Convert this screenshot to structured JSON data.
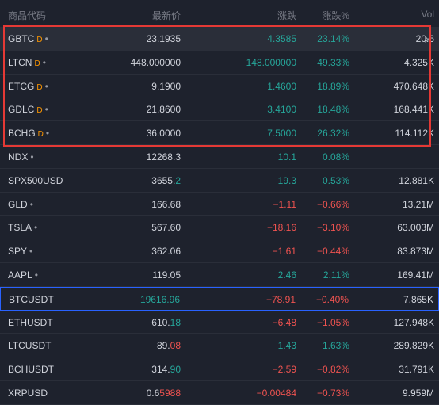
{
  "header": {
    "symbol": "商品代码",
    "last": "最新价",
    "change": "涨跌",
    "change_pct": "涨跌%",
    "volume": "Vol"
  },
  "rows": [
    {
      "symbol": "GBTC",
      "badge": "D",
      "dot": "•",
      "last_main": "23.1935",
      "last_tail": "",
      "change": "4.3585",
      "change_pct": "23.14%",
      "volume": "20.6",
      "dir": "up"
    },
    {
      "symbol": "LTCN",
      "badge": "D",
      "dot": "•",
      "last_main": "448.000000",
      "last_tail": "",
      "change": "148.000000",
      "change_pct": "49.33%",
      "volume": "4.325K",
      "dir": "up"
    },
    {
      "symbol": "ETCG",
      "badge": "D",
      "dot": "•",
      "last_main": "9.1900",
      "last_tail": "",
      "change": "1.4600",
      "change_pct": "18.89%",
      "volume": "470.648K",
      "dir": "up"
    },
    {
      "symbol": "GDLC",
      "badge": "D",
      "dot": "•",
      "last_main": "21.8600",
      "last_tail": "",
      "change": "3.4100",
      "change_pct": "18.48%",
      "volume": "168.441K",
      "dir": "up"
    },
    {
      "symbol": "BCHG",
      "badge": "D",
      "dot": "•",
      "last_main": "36.0000",
      "last_tail": "",
      "change": "7.5000",
      "change_pct": "26.32%",
      "volume": "114.112K",
      "dir": "up"
    },
    {
      "symbol": "NDX",
      "badge": "",
      "dot": "•",
      "last_main": "12268.3",
      "last_tail": "",
      "change": "10.1",
      "change_pct": "0.08%",
      "volume": "",
      "dir": "up"
    },
    {
      "symbol": "SPX500USD",
      "badge": "",
      "dot": "",
      "last_main": "3655.",
      "last_tail": "2",
      "change": "19.3",
      "change_pct": "0.53%",
      "volume": "12.881K",
      "dir": "up"
    },
    {
      "symbol": "GLD",
      "badge": "",
      "dot": "•",
      "last_main": "166.68",
      "last_tail": "",
      "change": "−1.11",
      "change_pct": "−0.66%",
      "volume": "13.21M",
      "dir": "dn"
    },
    {
      "symbol": "TSLA",
      "badge": "",
      "dot": "•",
      "last_main": "567.60",
      "last_tail": "",
      "change": "−18.16",
      "change_pct": "−3.10%",
      "volume": "63.003M",
      "dir": "dn"
    },
    {
      "symbol": "SPY",
      "badge": "",
      "dot": "•",
      "last_main": "362.06",
      "last_tail": "",
      "change": "−1.61",
      "change_pct": "−0.44%",
      "volume": "83.873M",
      "dir": "dn"
    },
    {
      "symbol": "AAPL",
      "badge": "",
      "dot": "•",
      "last_main": "119.05",
      "last_tail": "",
      "change": "2.46",
      "change_pct": "2.11%",
      "volume": "169.41M",
      "dir": "up"
    },
    {
      "symbol": "BTCUSDT",
      "badge": "",
      "dot": "",
      "last_main": "19616.96",
      "last_tail": "",
      "change": "−78.91",
      "change_pct": "−0.40%",
      "volume": "7.865K",
      "dir": "dn",
      "tail_dir": "up_full"
    },
    {
      "symbol": "ETHUSDT",
      "badge": "",
      "dot": "",
      "last_main": "610.",
      "last_tail": "18",
      "change": "−6.48",
      "change_pct": "−1.05%",
      "volume": "127.948K",
      "dir": "dn",
      "tail_dir": "up"
    },
    {
      "symbol": "LTCUSDT",
      "badge": "",
      "dot": "",
      "last_main": "89.",
      "last_tail": "08",
      "change": "1.43",
      "change_pct": "1.63%",
      "volume": "289.829K",
      "dir": "up",
      "tail_dir": "dn"
    },
    {
      "symbol": "BCHUSDT",
      "badge": "",
      "dot": "",
      "last_main": "314.",
      "last_tail": "90",
      "change": "−2.59",
      "change_pct": "−0.82%",
      "volume": "31.791K",
      "dir": "dn",
      "tail_dir": "up"
    },
    {
      "symbol": "XRPUSD",
      "badge": "",
      "dot": "",
      "last_main": "0.6",
      "last_tail": "5988",
      "change": "−0.00484",
      "change_pct": "−0.73%",
      "volume": "9.959M",
      "dir": "dn",
      "tail_dir": "dn"
    }
  ],
  "colors": {
    "up": "#26a69a",
    "down": "#ef5350",
    "badge": "#ff9800",
    "highlight": "#e53935",
    "active_border": "#2962ff"
  },
  "icons": {
    "close": "close-icon"
  },
  "close_glyph": "✕"
}
